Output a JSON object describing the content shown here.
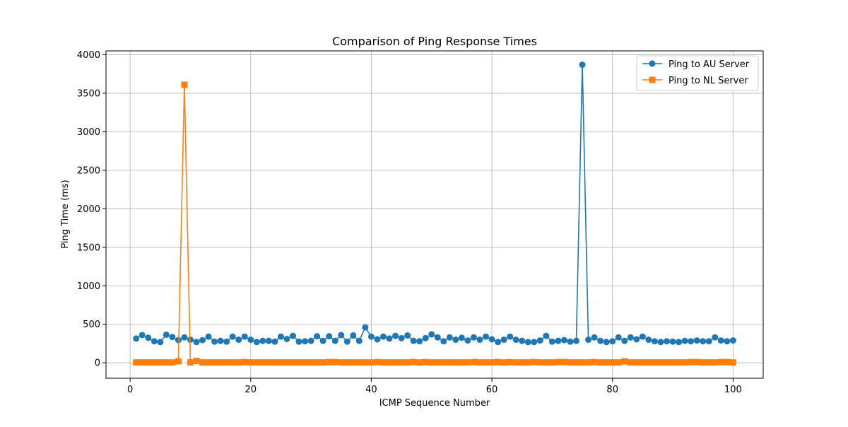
{
  "chart_data": {
    "type": "line",
    "title": "Comparison of Ping Response Times",
    "xlabel": "ICMP Sequence Number",
    "ylabel": "Ping Time (ms)",
    "xlim": [
      -4,
      105
    ],
    "ylim": [
      -200,
      4050
    ],
    "xticks": [
      0,
      20,
      40,
      60,
      80,
      100
    ],
    "yticks": [
      0,
      500,
      1000,
      1500,
      2000,
      2500,
      3000,
      3500,
      4000
    ],
    "grid": true,
    "legend_position": "top-right",
    "x": [
      1,
      2,
      3,
      4,
      5,
      6,
      7,
      8,
      9,
      10,
      11,
      12,
      13,
      14,
      15,
      16,
      17,
      18,
      19,
      20,
      21,
      22,
      23,
      24,
      25,
      26,
      27,
      28,
      29,
      30,
      31,
      32,
      33,
      34,
      35,
      36,
      37,
      38,
      39,
      40,
      41,
      42,
      43,
      44,
      45,
      46,
      47,
      48,
      49,
      50,
      51,
      52,
      53,
      54,
      55,
      56,
      57,
      58,
      59,
      60,
      61,
      62,
      63,
      64,
      65,
      66,
      67,
      68,
      69,
      70,
      71,
      72,
      73,
      74,
      75,
      76,
      77,
      78,
      79,
      80,
      81,
      82,
      83,
      84,
      85,
      86,
      87,
      88,
      89,
      90,
      91,
      92,
      93,
      94,
      95,
      96,
      97,
      98,
      99,
      100
    ],
    "series": [
      {
        "name": "Ping to AU Server",
        "color": "#1f77b4",
        "marker": "circle",
        "values": [
          315,
          360,
          325,
          280,
          270,
          365,
          335,
          295,
          330,
          300,
          270,
          295,
          340,
          275,
          285,
          275,
          340,
          300,
          340,
          300,
          270,
          285,
          285,
          275,
          340,
          310,
          350,
          275,
          280,
          285,
          345,
          285,
          345,
          285,
          360,
          275,
          355,
          285,
          460,
          340,
          305,
          340,
          315,
          350,
          320,
          355,
          285,
          280,
          320,
          370,
          330,
          280,
          330,
          300,
          325,
          290,
          330,
          300,
          340,
          305,
          270,
          300,
          340,
          300,
          285,
          270,
          270,
          290,
          350,
          275,
          285,
          295,
          275,
          285,
          3870,
          300,
          330,
          285,
          270,
          280,
          330,
          285,
          330,
          305,
          340,
          300,
          280,
          270,
          280,
          275,
          270,
          285,
          280,
          290,
          280,
          280,
          330,
          290,
          280,
          290
        ]
      },
      {
        "name": "Ping to NL Server",
        "color": "#ff7f0e",
        "marker": "square",
        "values": [
          5,
          5,
          5,
          5,
          5,
          5,
          5,
          20,
          3610,
          5,
          25,
          5,
          5,
          5,
          5,
          5,
          5,
          5,
          10,
          5,
          5,
          5,
          5,
          5,
          5,
          5,
          5,
          5,
          5,
          5,
          5,
          5,
          10,
          10,
          5,
          5,
          5,
          5,
          5,
          5,
          10,
          5,
          5,
          5,
          5,
          5,
          10,
          5,
          10,
          5,
          5,
          5,
          5,
          5,
          5,
          5,
          10,
          5,
          5,
          5,
          10,
          5,
          10,
          5,
          5,
          5,
          10,
          5,
          5,
          5,
          10,
          10,
          5,
          5,
          5,
          5,
          10,
          5,
          5,
          5,
          5,
          20,
          5,
          5,
          5,
          5,
          5,
          5,
          5,
          5,
          5,
          5,
          10,
          10,
          5,
          5,
          5,
          10,
          10,
          5
        ]
      }
    ]
  }
}
